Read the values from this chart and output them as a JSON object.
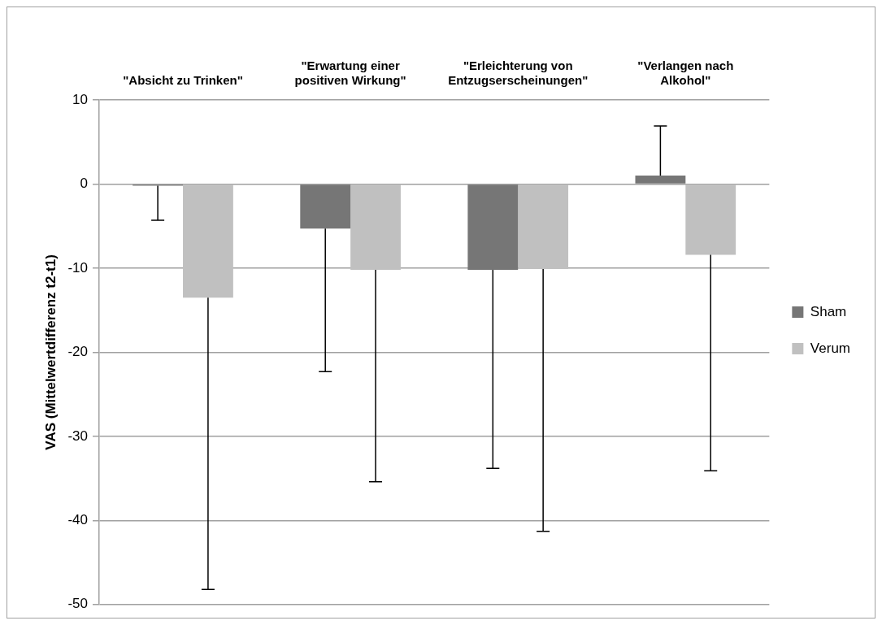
{
  "chart_data": {
    "type": "bar",
    "ylabel": "VAS (Mittelwertdifferenz t2-t1)",
    "categories": [
      "\"Absicht zu Trinken\"",
      "\"Erwartung einer positiven Wirkung\"",
      "\"Erleichterung von Entzugserscheinungen\"",
      "\"Verlangen nach Alkohol\""
    ],
    "series": [
      {
        "name": "Sham",
        "color": "#767676",
        "values": [
          -0.2,
          -5.3,
          -10.2,
          1.0
        ],
        "errors": [
          [
            -4.3,
            -0.2
          ],
          [
            -22.3,
            -5.3
          ],
          [
            -33.8,
            -10.2
          ],
          [
            1.0,
            6.9
          ]
        ]
      },
      {
        "name": "Verum",
        "color": "#c0c0c0",
        "values": [
          -13.5,
          -10.2,
          -10.1,
          -8.4
        ],
        "errors": [
          [
            -48.2,
            -13.5
          ],
          [
            -35.4,
            -10.2
          ],
          [
            -41.3,
            -10.1
          ],
          [
            -34.1,
            -8.4
          ]
        ]
      }
    ],
    "ylim": [
      -50,
      10
    ],
    "yticks": [
      -50,
      -40,
      -30,
      -20,
      -10,
      0,
      10
    ],
    "grid": "y",
    "legend": "right"
  }
}
